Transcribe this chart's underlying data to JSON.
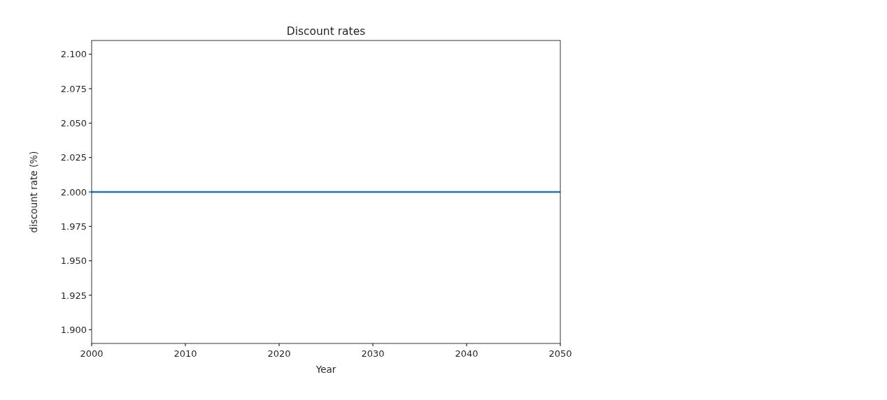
{
  "chart_data": {
    "type": "line",
    "title": "Discount rates",
    "xlabel": "Year",
    "ylabel": "discount rate (%)",
    "x": [
      2000,
      2050
    ],
    "series": [
      {
        "color": "#1f77b4",
        "values": [
          2.0,
          2.0
        ]
      }
    ],
    "xlim": [
      2000,
      2050
    ],
    "xticks": [
      2000,
      2010,
      2020,
      2030,
      2040,
      2050
    ],
    "ylim": [
      1.89,
      2.11
    ],
    "yticks": [
      {
        "value": 1.9,
        "label": "1.900"
      },
      {
        "value": 1.925,
        "label": "1.925"
      },
      {
        "value": 1.95,
        "label": "1.950"
      },
      {
        "value": 1.975,
        "label": "1.975"
      },
      {
        "value": 2.0,
        "label": "2.000"
      },
      {
        "value": 2.025,
        "label": "2.025"
      },
      {
        "value": 2.05,
        "label": "2.050"
      },
      {
        "value": 2.075,
        "label": "2.075"
      },
      {
        "value": 2.1,
        "label": "2.100"
      }
    ],
    "grid": false,
    "marker": "none",
    "line_style": "solid"
  }
}
